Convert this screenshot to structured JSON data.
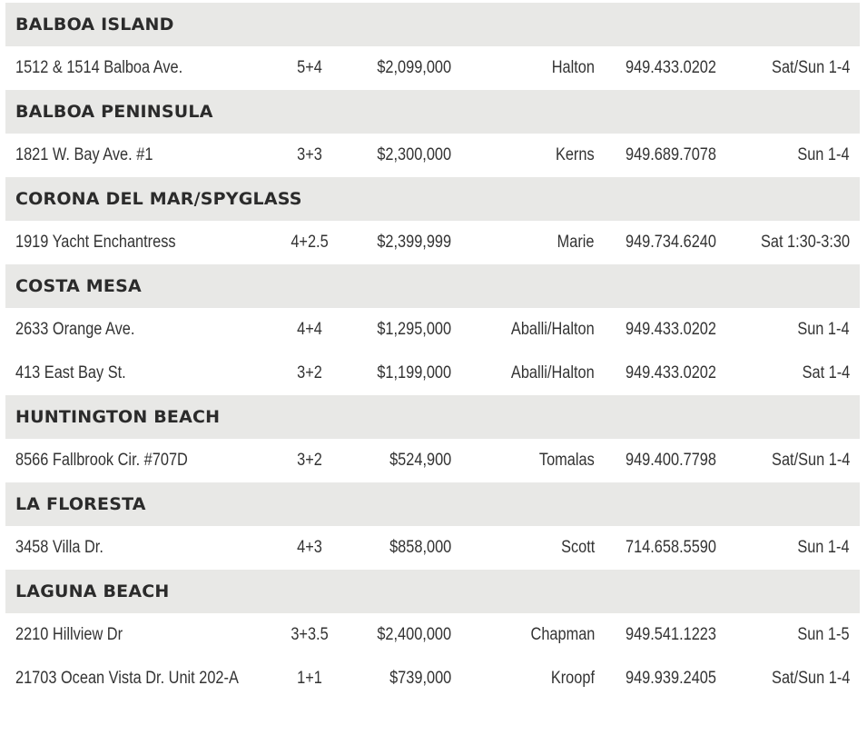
{
  "sections": [
    {
      "name": "BALBOA ISLAND",
      "listings": [
        {
          "address": "1512 & 1514 Balboa Ave.",
          "beds_baths": "5+4",
          "price": "$2,099,000",
          "agent": "Halton",
          "phone": "949.433.0202",
          "time": "Sat/Sun 1-4"
        }
      ]
    },
    {
      "name": "BALBOA PENINSULA",
      "listings": [
        {
          "address": "1821 W. Bay Ave. #1",
          "beds_baths": "3+3",
          "price": "$2,300,000",
          "agent": "Kerns",
          "phone": "949.689.7078",
          "time": "Sun 1-4"
        }
      ]
    },
    {
      "name": "CORONA DEL MAR/SPYGLASS",
      "listings": [
        {
          "address": "1919 Yacht Enchantress",
          "beds_baths": "4+2.5",
          "price": "$2,399,999",
          "agent": "Marie",
          "phone": "949.734.6240",
          "time": "Sat 1:30-3:30"
        }
      ]
    },
    {
      "name": "COSTA MESA",
      "listings": [
        {
          "address": "2633 Orange  Ave.",
          "beds_baths": "4+4",
          "price": "$1,295,000",
          "agent": "Aballi/Halton",
          "phone": "949.433.0202",
          "time": "Sun 1-4"
        },
        {
          "address": "413 East Bay St.",
          "beds_baths": "3+2",
          "price": "$1,199,000",
          "agent": "Aballi/Halton",
          "phone": "949.433.0202",
          "time": "Sat 1-4"
        }
      ]
    },
    {
      "name": "HUNTINGTON BEACH",
      "listings": [
        {
          "address": "8566 Fallbrook Cir. #707D",
          "beds_baths": "3+2",
          "price": "$524,900",
          "agent": "Tomalas",
          "phone": "949.400.7798",
          "time": "Sat/Sun 1-4"
        }
      ]
    },
    {
      "name": "LA FLORESTA",
      "listings": [
        {
          "address": "3458 Villa Dr.",
          "beds_baths": "4+3",
          "price": "$858,000",
          "agent": "Scott",
          "phone": "714.658.5590",
          "time": "Sun 1-4"
        }
      ]
    },
    {
      "name": "LAGUNA BEACH",
      "listings": [
        {
          "address": "2210 Hillview Dr",
          "beds_baths": "3+3.5",
          "price": "$2,400,000",
          "agent": "Chapman",
          "phone": "949.541.1223",
          "time": "Sun 1-5"
        },
        {
          "address": "21703 Ocean Vista Dr. Unit 202-A",
          "beds_baths": "1+1",
          "price": "$739,000",
          "agent": "Kroopf",
          "phone": "949.939.2405",
          "time": "Sat/Sun 1-4"
        }
      ]
    }
  ]
}
